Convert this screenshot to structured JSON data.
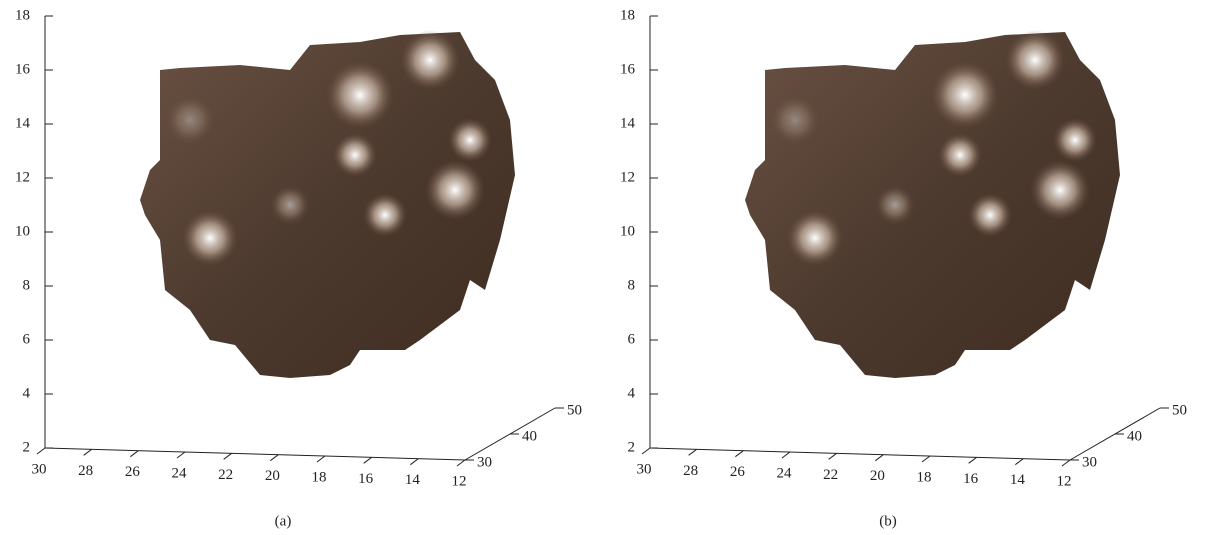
{
  "chart_data": [
    {
      "type": "surface",
      "caption": "(a)",
      "zlim": [
        2,
        18
      ],
      "zticks": [
        2,
        4,
        6,
        8,
        10,
        12,
        14,
        16,
        18
      ],
      "xlim": [
        30,
        12
      ],
      "xticks": [
        30,
        28,
        26,
        24,
        22,
        20,
        18,
        16,
        14,
        12
      ],
      "ylim": [
        30,
        50
      ],
      "yticks": [
        30,
        40,
        50
      ]
    },
    {
      "type": "surface",
      "caption": "(b)",
      "zlim": [
        2,
        18
      ],
      "zticks": [
        2,
        4,
        6,
        8,
        10,
        12,
        14,
        16,
        18
      ],
      "xlim": [
        30,
        12
      ],
      "xticks": [
        30,
        28,
        26,
        24,
        22,
        20,
        18,
        16,
        14,
        12
      ],
      "ylim": [
        30,
        50
      ],
      "yticks": [
        30,
        40,
        50
      ]
    }
  ]
}
